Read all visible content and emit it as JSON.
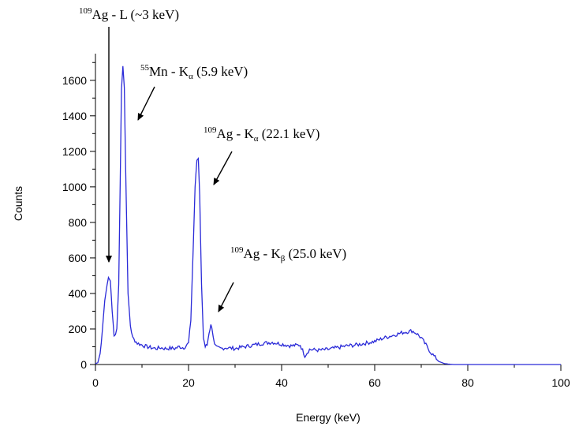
{
  "chart_data": {
    "type": "line",
    "title": "",
    "xlabel": "Energy (keV)",
    "ylabel": "Counts",
    "xlim": [
      0,
      100
    ],
    "ylim": [
      0,
      1750
    ],
    "xticks": [
      0,
      20,
      40,
      60,
      80,
      100
    ],
    "yticks": [
      0,
      200,
      400,
      600,
      800,
      1000,
      1200,
      1400,
      1600
    ],
    "grid": false,
    "line_color": "#2a2ad8",
    "series": [
      {
        "x": [
          0,
          0.5,
          1,
          1.5,
          2,
          2.5,
          2.8,
          3.2,
          3.6,
          4,
          4.3,
          4.6,
          5,
          5.3,
          5.6,
          5.9,
          6.2,
          6.5,
          7,
          7.5,
          8,
          9,
          10,
          11,
          12,
          13,
          14,
          15,
          16,
          17,
          18,
          19,
          20,
          20.5,
          21,
          21.4,
          21.8,
          22.1,
          22.4,
          22.8,
          23.2,
          23.6,
          24,
          24.4,
          24.8,
          25,
          25.3,
          25.6,
          26,
          27,
          28,
          30,
          32,
          34,
          36,
          38,
          40,
          42,
          44,
          45,
          46,
          48,
          50,
          52,
          54,
          56,
          58,
          60,
          62,
          64,
          66,
          67,
          68,
          69,
          70,
          71,
          72,
          73,
          74,
          75,
          76,
          77,
          78,
          80,
          85,
          90,
          95,
          100
        ],
        "y": [
          5,
          10,
          60,
          200,
          360,
          450,
          490,
          470,
          300,
          170,
          160,
          200,
          450,
          1000,
          1550,
          1680,
          1560,
          1100,
          400,
          220,
          150,
          120,
          110,
          100,
          95,
          90,
          95,
          90,
          92,
          90,
          100,
          95,
          120,
          250,
          650,
          1000,
          1150,
          1160,
          950,
          450,
          150,
          100,
          110,
          180,
          220,
          215,
          160,
          110,
          95,
          90,
          95,
          90,
          100,
          110,
          120,
          125,
          115,
          105,
          110,
          50,
          85,
          80,
          85,
          95,
          105,
          110,
          120,
          130,
          150,
          165,
          180,
          185,
          190,
          175,
          150,
          110,
          70,
          40,
          15,
          5,
          2,
          0,
          0,
          0,
          0,
          0,
          0,
          0
        ]
      }
    ],
    "annotations": [
      {
        "id": "ag-l",
        "mass": "109",
        "element": "Ag",
        "sep": " - ",
        "line": "L",
        "sub": "",
        "energy": " (~3 keV)",
        "x": 2.8,
        "y": 490
      },
      {
        "id": "mn-ka",
        "mass": "55",
        "element": "Mn",
        "sep": " - ",
        "line": "K",
        "sub": "α",
        "energy": " (5.9 keV)",
        "x": 8.5,
        "y": 1300
      },
      {
        "id": "ag-ka",
        "mass": "109",
        "element": "Ag",
        "sep": " - ",
        "line": "K",
        "sub": "α",
        "energy": " (22.1 keV)",
        "x": 24.8,
        "y": 970
      },
      {
        "id": "ag-kb",
        "mass": "109",
        "element": "Ag",
        "sep": " - ",
        "line": "K",
        "sub": "β",
        "energy": " (25.0 keV)",
        "x": 26.2,
        "y": 270
      }
    ]
  }
}
